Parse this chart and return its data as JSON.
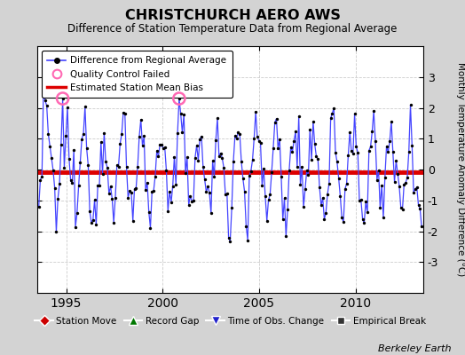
{
  "title": "CHRISTCHURCH AERO AWS",
  "subtitle": "Difference of Station Temperature Data from Regional Average",
  "ylabel": "Monthly Temperature Anomaly Difference (°C)",
  "xlabel_ticks": [
    1995,
    2000,
    2005,
    2010
  ],
  "ylim": [
    -4,
    4
  ],
  "xlim": [
    1993.5,
    2013.5
  ],
  "red_line_y": -0.1,
  "background_color": "#d3d3d3",
  "plot_background": "#ffffff",
  "line_color": "#4444ff",
  "dot_color": "#000000",
  "red_color": "#dd0000",
  "qc_color": "#ff69b4",
  "berkeley_earth_text": "Berkeley Earth",
  "seed": 12345
}
